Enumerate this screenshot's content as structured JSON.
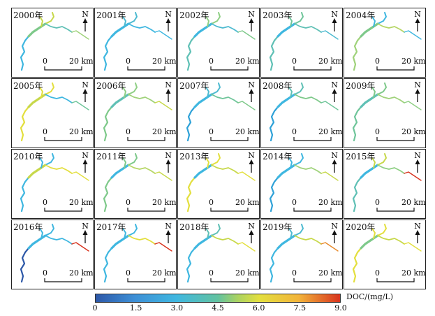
{
  "panels": [
    {
      "year": "2000年",
      "colors": [
        "#3fb7e0",
        "#7ec98a",
        "#c7d84a",
        "#5fc0b5",
        "#9fd27a"
      ]
    },
    {
      "year": "2001年",
      "colors": [
        "#3fb7e0",
        "#3fb7e0",
        "#4dbad0",
        "#3fb7e0",
        "#3fb7e0"
      ]
    },
    {
      "year": "2002年",
      "colors": [
        "#5fc0b5",
        "#3fb7e0",
        "#8fcf85",
        "#4dbad0",
        "#7ec98a"
      ]
    },
    {
      "year": "2003年",
      "colors": [
        "#5fc0b5",
        "#3fb7e0",
        "#6fc59a",
        "#5fc0b5",
        "#4dbad0"
      ]
    },
    {
      "year": "2004年",
      "colors": [
        "#9fd27a",
        "#7ec98a",
        "#3fb7e0",
        "#b6d666",
        "#3fb7e0"
      ]
    },
    {
      "year": "2005年",
      "colors": [
        "#e3df3e",
        "#c7d84a",
        "#e3df3e",
        "#3fb7e0",
        "#6fc59a"
      ]
    },
    {
      "year": "2006年",
      "colors": [
        "#7ec98a",
        "#5fc0b5",
        "#8fcf85",
        "#9fd27a",
        "#c7d84a"
      ]
    },
    {
      "year": "2007年",
      "colors": [
        "#2fa2d8",
        "#3fb7e0",
        "#4dbad0",
        "#6fc59a",
        "#7ec98a"
      ]
    },
    {
      "year": "2008年",
      "colors": [
        "#2fa2d8",
        "#3fb7e0",
        "#5fc0b5",
        "#7ec98a",
        "#6fc59a"
      ]
    },
    {
      "year": "2009年",
      "colors": [
        "#6fc59a",
        "#5fc0b5",
        "#7ec98a",
        "#9fd27a",
        "#8fcf85"
      ]
    },
    {
      "year": "2010年",
      "colors": [
        "#3fb7e0",
        "#c7d84a",
        "#3fb7e0",
        "#e3df3e",
        "#e3df3e"
      ]
    },
    {
      "year": "2011年",
      "colors": [
        "#7ec98a",
        "#3fb7e0",
        "#7ec98a",
        "#b6d666",
        "#c7d84a"
      ]
    },
    {
      "year": "2013年",
      "colors": [
        "#e3df3e",
        "#3fb7e0",
        "#e3df3e",
        "#c7d84a",
        "#e3df3e"
      ]
    },
    {
      "year": "2014年",
      "colors": [
        "#2fa2d8",
        "#3fb7e0",
        "#3fb7e0",
        "#9fd27a",
        "#c7d84a"
      ]
    },
    {
      "year": "2015年",
      "colors": [
        "#5fc0b5",
        "#3fb7e0",
        "#c7d84a",
        "#8fcf85",
        "#d8331e"
      ]
    },
    {
      "year": "2016年",
      "colors": [
        "#2d58a8",
        "#3fb7e0",
        "#3fb7e0",
        "#3fb7e0",
        "#d8331e"
      ]
    },
    {
      "year": "2017年",
      "colors": [
        "#3fb7e0",
        "#3fb7e0",
        "#3fb7e0",
        "#e3df3e",
        "#d8331e"
      ]
    },
    {
      "year": "2018年",
      "colors": [
        "#3fb7e0",
        "#3fb7e0",
        "#5fc0b5",
        "#c7d84a",
        "#e3df3e"
      ]
    },
    {
      "year": "2019年",
      "colors": [
        "#3fb7e0",
        "#3fb7e0",
        "#4dbad0",
        "#c7d84a",
        "#e88a2c"
      ]
    },
    {
      "year": "2020年",
      "colors": [
        "#e3df3e",
        "#7ec98a",
        "#e3df3e",
        "#c7d84a",
        "#e3df3e"
      ]
    }
  ],
  "north_label": "N",
  "scale": {
    "zero": "0",
    "distance": "20 km"
  },
  "legend": {
    "title": "DOC/(mg/L)",
    "ticks": [
      "0",
      "1.5",
      "3.0",
      "4.5",
      "6.0",
      "7.5",
      "9.0"
    ],
    "min": 0,
    "max": 9,
    "colors": [
      "#2d58a8",
      "#3d8fd6",
      "#3fb7e0",
      "#62c2a0",
      "#a9d262",
      "#e3df3e",
      "#f2b43a",
      "#d8331e"
    ]
  }
}
